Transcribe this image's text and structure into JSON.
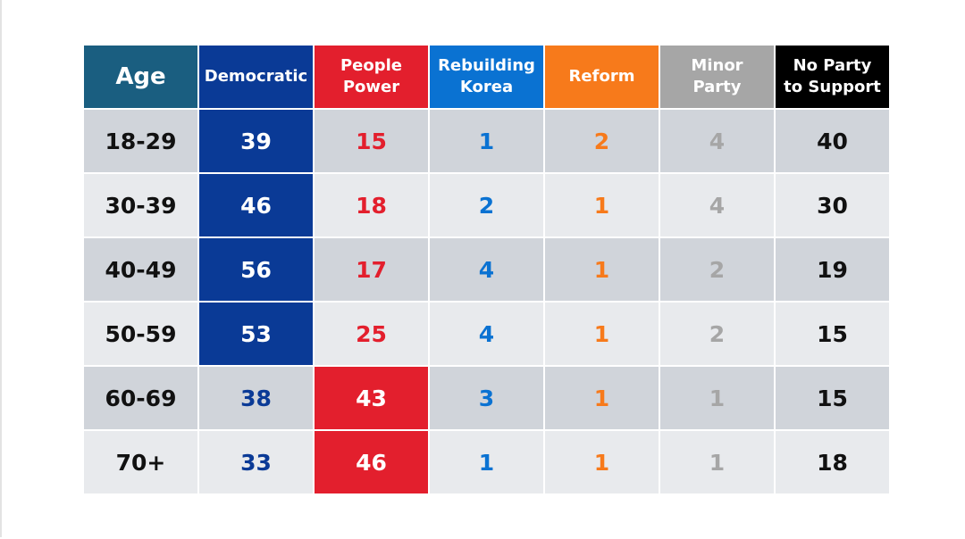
{
  "table": {
    "header": [
      "Age",
      "Democratic",
      "People\nPower",
      "Rebuilding\nKorea",
      "Reform",
      "Minor\nParty",
      "No Party\nto Support"
    ],
    "rows": [
      [
        "18-29",
        39,
        15,
        1,
        2,
        4,
        40
      ],
      [
        "30-39",
        46,
        18,
        2,
        1,
        4,
        30
      ],
      [
        "40-49",
        56,
        17,
        4,
        1,
        2,
        19
      ],
      [
        "50-59",
        53,
        25,
        4,
        1,
        2,
        15
      ],
      [
        "60-69",
        38,
        43,
        3,
        1,
        1,
        15
      ],
      [
        "70+",
        33,
        46,
        1,
        1,
        1,
        18
      ]
    ]
  }
}
